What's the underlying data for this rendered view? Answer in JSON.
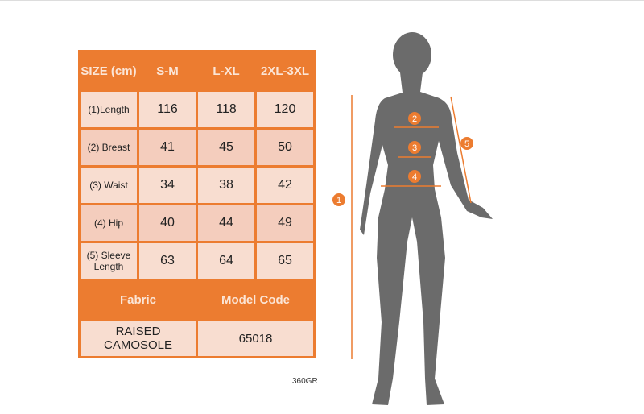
{
  "table": {
    "header": [
      "SIZE (cm)",
      "S-M",
      "L-XL",
      "2XL-3XL"
    ],
    "rows": [
      {
        "label": "(1)Length",
        "values": [
          "116",
          "118",
          "120"
        ]
      },
      {
        "label": "(2) Breast",
        "values": [
          "41",
          "45",
          "50"
        ]
      },
      {
        "label": "(3) Waist",
        "values": [
          "34",
          "38",
          "42"
        ]
      },
      {
        "label": "(4) Hip",
        "values": [
          "40",
          "44",
          "49"
        ]
      },
      {
        "label": "(5) Sleeve Length",
        "values": [
          "63",
          "64",
          "65"
        ]
      }
    ],
    "fabric_label": "Fabric",
    "model_code_label": "Model Code",
    "fabric": "RAISED CAMOSOLE",
    "model_code": "65018"
  },
  "note": "360GR",
  "markers": [
    "1",
    "2",
    "3",
    "4",
    "5"
  ],
  "colors": {
    "accent": "#ec7c30",
    "silhouette": "#6b6b6b"
  }
}
